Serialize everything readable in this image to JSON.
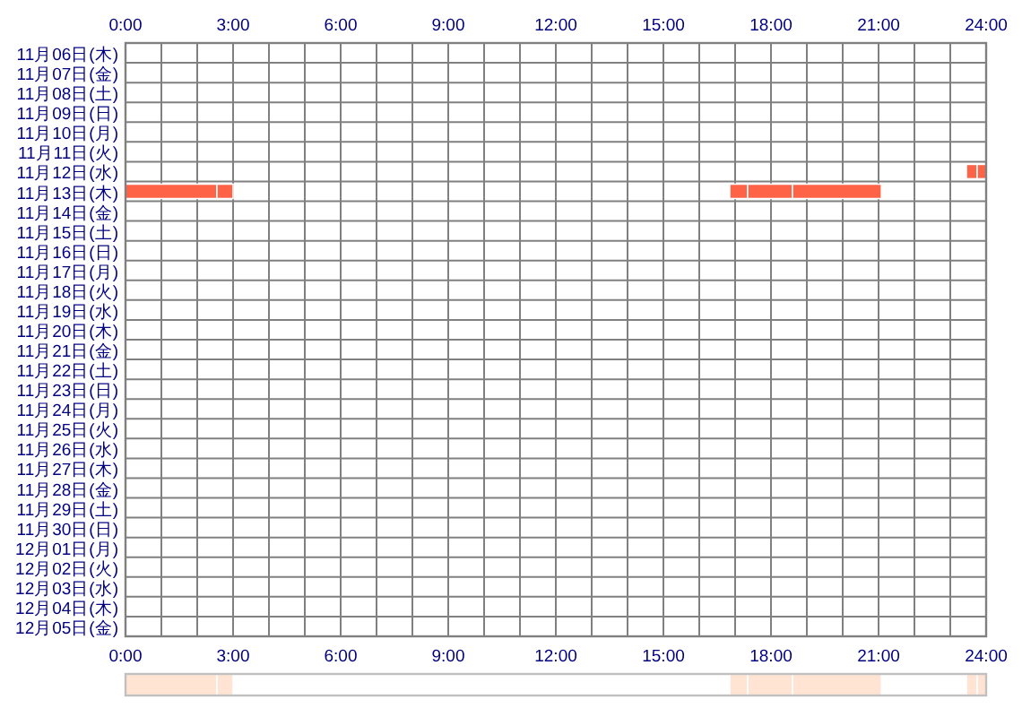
{
  "chart_data": [
    {
      "type": "bar",
      "orientation": "horizontal",
      "grid": true,
      "categories": [
        "11月06日(木)",
        "11月07日(金)",
        "11月08日(土)",
        "11月09日(日)",
        "11月10日(月)",
        "11月11日(火)",
        "11月12日(水)",
        "11月13日(木)",
        "11月14日(金)",
        "11月15日(土)",
        "11月16日(日)",
        "11月17日(月)",
        "11月18日(火)",
        "11月19日(水)",
        "11月20日(木)",
        "11月21日(金)",
        "11月22日(土)",
        "11月23日(日)",
        "11月24日(月)",
        "11月25日(火)",
        "11月26日(水)",
        "11月27日(木)",
        "11月28日(金)",
        "11月29日(土)",
        "11月30日(日)",
        "12月01日(月)",
        "12月02日(火)",
        "12月03日(水)",
        "12月04日(木)",
        "12月05日(金)"
      ],
      "xlim": [
        0,
        24
      ],
      "xticks": [
        {
          "value": 0,
          "label": "0:00"
        },
        {
          "value": 1,
          "label": null
        },
        {
          "value": 2,
          "label": null
        },
        {
          "value": 3,
          "label": "3:00"
        },
        {
          "value": 4,
          "label": null
        },
        {
          "value": 5,
          "label": null
        },
        {
          "value": 6,
          "label": "6:00"
        },
        {
          "value": 7,
          "label": null
        },
        {
          "value": 8,
          "label": null
        },
        {
          "value": 9,
          "label": "9:00"
        },
        {
          "value": 10,
          "label": null
        },
        {
          "value": 11,
          "label": null
        },
        {
          "value": 12,
          "label": "12:00"
        },
        {
          "value": 13,
          "label": null
        },
        {
          "value": 14,
          "label": null
        },
        {
          "value": 15,
          "label": "15:00"
        },
        {
          "value": 16,
          "label": null
        },
        {
          "value": 17,
          "label": null
        },
        {
          "value": 18,
          "label": "18:00"
        },
        {
          "value": 19,
          "label": null
        },
        {
          "value": 20,
          "label": null
        },
        {
          "value": 21,
          "label": "21:00"
        },
        {
          "value": 22,
          "label": null
        },
        {
          "value": 23,
          "label": null
        },
        {
          "value": 24,
          "label": "24:00"
        }
      ],
      "x2lim": [
        0,
        24
      ],
      "x2ticks": [
        {
          "value": 0,
          "label": "0:00"
        },
        {
          "value": 3,
          "label": "3:00"
        },
        {
          "value": 6,
          "label": "6:00"
        },
        {
          "value": 9,
          "label": "9:00"
        },
        {
          "value": 12,
          "label": "12:00"
        },
        {
          "value": 15,
          "label": "15:00"
        },
        {
          "value": 18,
          "label": "18:00"
        },
        {
          "value": 21,
          "label": "21:00"
        },
        {
          "value": 24,
          "label": "24:00"
        }
      ],
      "series": [
        {
          "color": "#ff6347",
          "base": [
            null,
            null,
            null,
            null,
            null,
            null,
            23.45,
            0,
            null,
            null,
            null,
            null,
            null,
            null,
            null,
            null,
            null,
            null,
            null,
            null,
            null,
            null,
            null,
            null,
            null,
            null,
            null,
            null,
            null,
            null
          ],
          "values": [
            null,
            null,
            null,
            null,
            null,
            null,
            0.3,
            2.55,
            null,
            null,
            null,
            null,
            null,
            null,
            null,
            null,
            null,
            null,
            null,
            null,
            null,
            null,
            null,
            null,
            null,
            null,
            null,
            null,
            null,
            null
          ]
        },
        {
          "color": "#ff6347",
          "base": [
            null,
            null,
            null,
            null,
            null,
            null,
            23.75,
            2.55,
            null,
            null,
            null,
            null,
            null,
            null,
            null,
            null,
            null,
            null,
            null,
            null,
            null,
            null,
            null,
            null,
            null,
            null,
            null,
            null,
            null,
            null
          ],
          "values": [
            null,
            null,
            null,
            null,
            null,
            null,
            0.25,
            0.45,
            null,
            null,
            null,
            null,
            null,
            null,
            null,
            null,
            null,
            null,
            null,
            null,
            null,
            null,
            null,
            null,
            null,
            null,
            null,
            null,
            null,
            null
          ]
        },
        {
          "color": "#ff6347",
          "base": [
            null,
            null,
            null,
            null,
            null,
            null,
            null,
            16.85,
            null,
            null,
            null,
            null,
            null,
            null,
            null,
            null,
            null,
            null,
            null,
            null,
            null,
            null,
            null,
            null,
            null,
            null,
            null,
            null,
            null,
            null
          ],
          "values": [
            null,
            null,
            null,
            null,
            null,
            null,
            null,
            0.5,
            null,
            null,
            null,
            null,
            null,
            null,
            null,
            null,
            null,
            null,
            null,
            null,
            null,
            null,
            null,
            null,
            null,
            null,
            null,
            null,
            null,
            null
          ]
        },
        {
          "color": "#ff6347",
          "base": [
            null,
            null,
            null,
            null,
            null,
            null,
            null,
            17.35,
            null,
            null,
            null,
            null,
            null,
            null,
            null,
            null,
            null,
            null,
            null,
            null,
            null,
            null,
            null,
            null,
            null,
            null,
            null,
            null,
            null,
            null
          ],
          "values": [
            null,
            null,
            null,
            null,
            null,
            null,
            null,
            1.25,
            null,
            null,
            null,
            null,
            null,
            null,
            null,
            null,
            null,
            null,
            null,
            null,
            null,
            null,
            null,
            null,
            null,
            null,
            null,
            null,
            null,
            null
          ]
        },
        {
          "color": "#ff6347",
          "base": [
            null,
            null,
            null,
            null,
            null,
            null,
            null,
            18.6,
            null,
            null,
            null,
            null,
            null,
            null,
            null,
            null,
            null,
            null,
            null,
            null,
            null,
            null,
            null,
            null,
            null,
            null,
            null,
            null,
            null,
            null
          ],
          "values": [
            null,
            null,
            null,
            null,
            null,
            null,
            null,
            2.48,
            null,
            null,
            null,
            null,
            null,
            null,
            null,
            null,
            null,
            null,
            null,
            null,
            null,
            null,
            null,
            null,
            null,
            null,
            null,
            null,
            null,
            null
          ]
        }
      ]
    },
    {
      "type": "bar",
      "orientation": "horizontal",
      "grid": false,
      "categories": [
        null
      ],
      "xlim": [
        0,
        24
      ],
      "series": [
        {
          "color": "#ffe4d4",
          "base": [
            0
          ],
          "values": [
            2.55
          ]
        },
        {
          "color": "#ffe4d4",
          "base": [
            2.55
          ],
          "values": [
            0.45
          ]
        },
        {
          "color": "#ffe4d4",
          "base": [
            16.85
          ],
          "values": [
            0.5
          ]
        },
        {
          "color": "#ffe4d4",
          "base": [
            17.35
          ],
          "values": [
            1.25
          ]
        },
        {
          "color": "#ffe4d4",
          "base": [
            18.6
          ],
          "values": [
            2.48
          ]
        },
        {
          "color": "#ffe4d4",
          "base": [
            23.45
          ],
          "values": [
            0.3
          ]
        },
        {
          "color": "#ffe4d4",
          "base": [
            23.75
          ],
          "values": [
            0.25
          ]
        }
      ]
    }
  ]
}
